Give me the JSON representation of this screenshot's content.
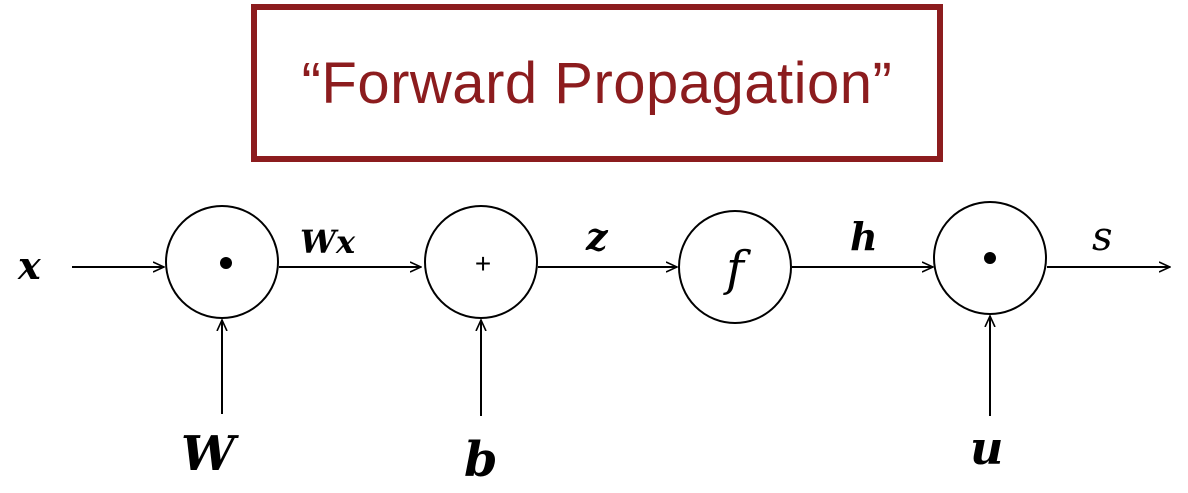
{
  "title": "“Forward Propagation”",
  "diagram": {
    "inputs": {
      "x": "x",
      "W": "W",
      "b": "b",
      "u": "u"
    },
    "edges": {
      "Wx": "Wx",
      "z": "z",
      "h": "h",
      "s": "s"
    },
    "nodes": {
      "mul1": "•",
      "add": "+",
      "f": "f",
      "mul2": "•"
    }
  }
}
